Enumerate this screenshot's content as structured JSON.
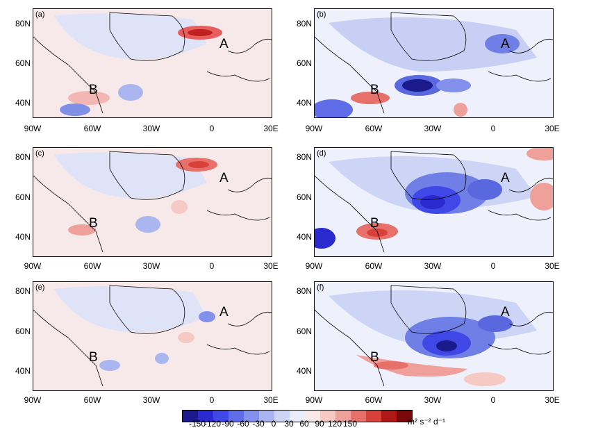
{
  "panels": [
    {
      "id": "a",
      "label": "(a)",
      "lat_labels": [
        "80N",
        "60N",
        "40N"
      ],
      "lon_labels": [
        "90W",
        "60W",
        "30W",
        "0",
        "30E"
      ],
      "point_a": "A",
      "point_b": "B"
    },
    {
      "id": "b",
      "label": "(b)",
      "lat_labels": [
        "80N",
        "60N",
        "40N"
      ],
      "lon_labels": [
        "90W",
        "60W",
        "30W",
        "0",
        "30E"
      ],
      "point_a": "A",
      "point_b": "B"
    },
    {
      "id": "c",
      "label": "(c)",
      "lat_labels": [
        "80N",
        "60N",
        "40N"
      ],
      "lon_labels": [
        "90W",
        "60W",
        "30W",
        "0",
        "30E"
      ],
      "point_a": "A",
      "point_b": "B"
    },
    {
      "id": "d",
      "label": "(d)",
      "lat_labels": [
        "80N",
        "60N",
        "40N"
      ],
      "lon_labels": [
        "90W",
        "60W",
        "30W",
        "0",
        "30E"
      ],
      "point_a": "A",
      "point_b": "B"
    },
    {
      "id": "e",
      "label": "(e)",
      "lat_labels": [
        "80N",
        "60N",
        "40N"
      ],
      "lon_labels": [
        "90W",
        "60W",
        "30W",
        "0",
        "30E"
      ],
      "point_a": "A",
      "point_b": "B"
    },
    {
      "id": "f",
      "label": "(f)",
      "lat_labels": [
        "80N",
        "60N",
        "40N"
      ],
      "lon_labels": [
        "90W",
        "60W",
        "30W",
        "0",
        "30E"
      ],
      "point_a": "A",
      "point_b": "B"
    }
  ],
  "colorbar": {
    "ticks": [
      "-150",
      "-120",
      "-90",
      "-60",
      "-30",
      "0",
      "30",
      "60",
      "90",
      "120",
      "150"
    ],
    "unit": "m² s⁻² d⁻¹",
    "colors": [
      "#1a1a8c",
      "#2a2ad0",
      "#3f48e6",
      "#5f6ee8",
      "#8391ec",
      "#a9b4f0",
      "#cdd5f6",
      "#e8ecfb",
      "#fbe8e6",
      "#f6c9c4",
      "#f0a09a",
      "#e8706a",
      "#d8403c",
      "#b01818",
      "#7a0808"
    ]
  }
}
